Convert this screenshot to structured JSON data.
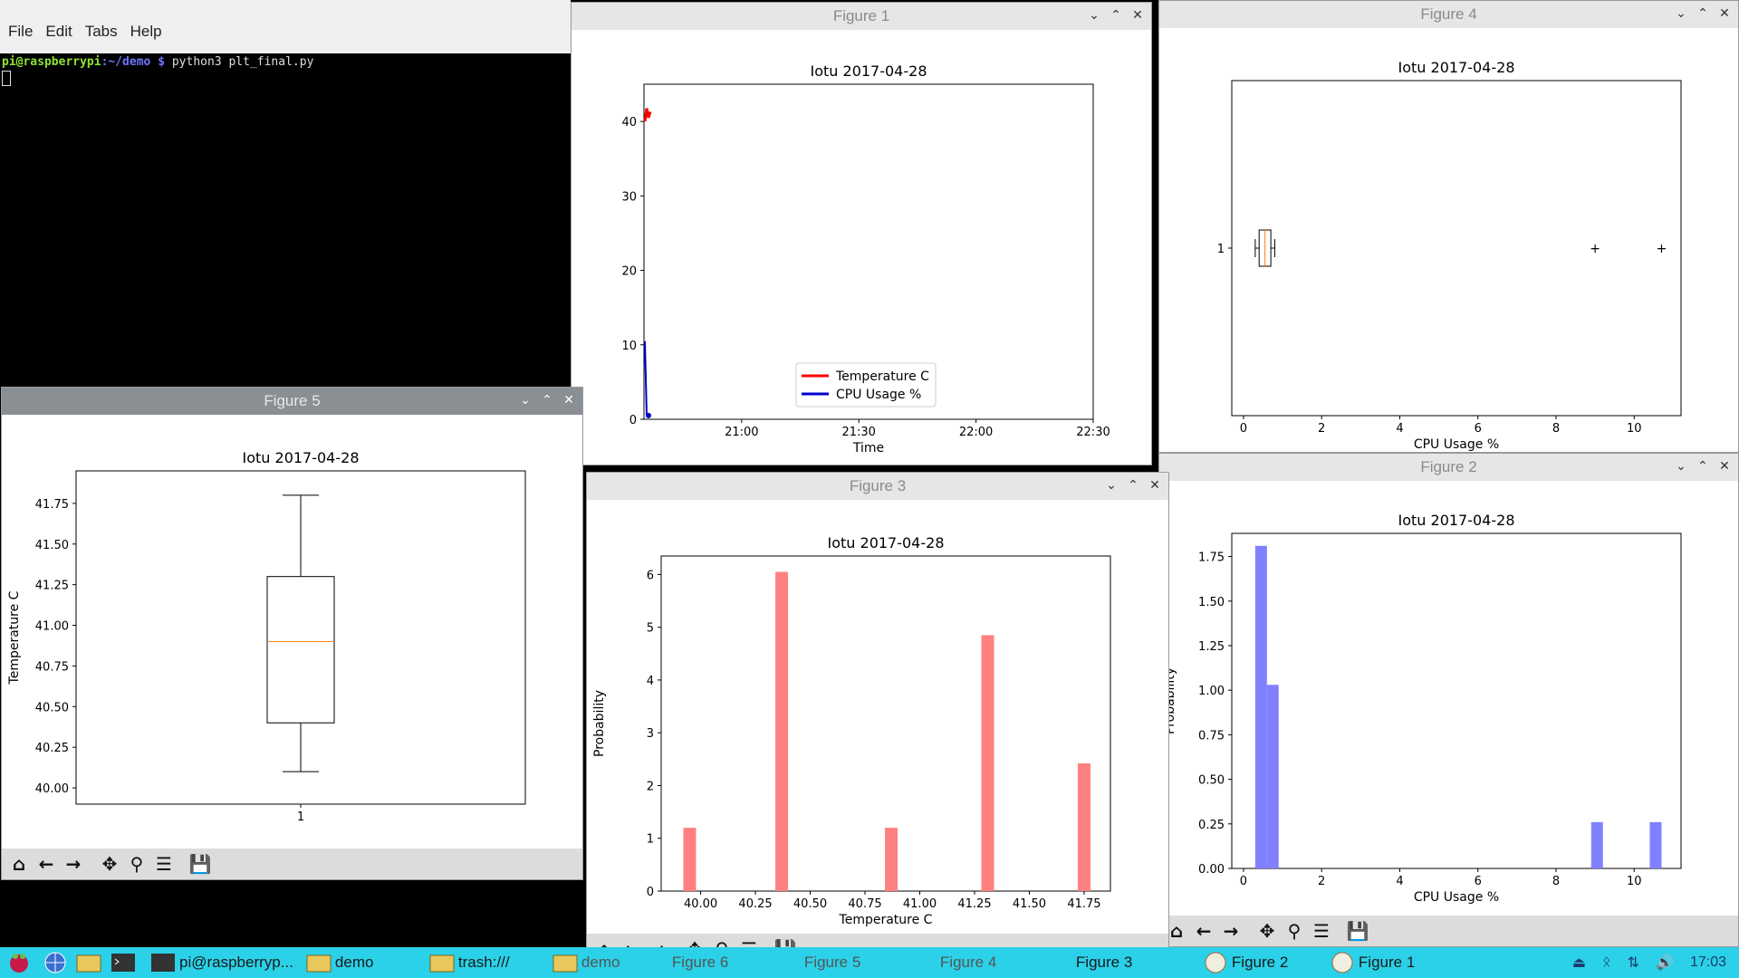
{
  "terminal": {
    "menu": [
      "File",
      "Edit",
      "Tabs",
      "Help"
    ],
    "prompt_user": "pi@raspberrypi",
    "prompt_path": ":~/demo $",
    "command": " python3 plt_final.py"
  },
  "figures": {
    "fig1": {
      "title": "Figure 1",
      "plot_title": "Iotu 2017-04-28",
      "xlabel": "Time",
      "yticks": [
        "0",
        "10",
        "20",
        "30",
        "40"
      ],
      "xticks": [
        "21:00",
        "21:30",
        "22:00",
        "22:30"
      ],
      "legend": [
        "Temperature C",
        "CPU Usage %"
      ]
    },
    "fig4": {
      "title": "Figure 4",
      "plot_title": "Iotu 2017-04-28",
      "xlabel": "CPU Usage %",
      "yticks": [
        "1"
      ],
      "xticks": [
        "0",
        "2",
        "4",
        "6",
        "8",
        "10"
      ]
    },
    "fig5": {
      "title": "Figure 5",
      "plot_title": "Iotu 2017-04-28",
      "ylabel": "Temperature C",
      "yticks": [
        "40.00",
        "40.25",
        "40.50",
        "40.75",
        "41.00",
        "41.25",
        "41.50",
        "41.75"
      ],
      "xticks": [
        "1"
      ]
    },
    "fig3": {
      "title": "Figure 3",
      "plot_title": "Iotu 2017-04-28",
      "xlabel": "Temperature C",
      "ylabel": "Probability",
      "yticks": [
        "0",
        "1",
        "2",
        "3",
        "4",
        "5",
        "6"
      ],
      "xticks": [
        "40.00",
        "40.25",
        "40.50",
        "40.75",
        "41.00",
        "41.25",
        "41.50",
        "41.75"
      ]
    },
    "fig2": {
      "title": "Figure 2",
      "plot_title": "Iotu 2017-04-28",
      "xlabel": "CPU Usage %",
      "ylabel": "Probability",
      "yticks": [
        "0.00",
        "0.25",
        "0.50",
        "0.75",
        "1.00",
        "1.25",
        "1.50",
        "1.75"
      ],
      "xticks": [
        "0",
        "2",
        "4",
        "6",
        "8",
        "10"
      ]
    }
  },
  "chart_data": [
    {
      "type": "line",
      "title": "Iotu 2017-04-28",
      "xlabel": "Time",
      "ylabel": "",
      "ylim": [
        0,
        45
      ],
      "xlim": [
        "20:35",
        "22:30"
      ],
      "series": [
        {
          "name": "Temperature C",
          "color": "#ff0000",
          "values": [
            40,
            41.75,
            40.5,
            41.3
          ]
        },
        {
          "name": "CPU Usage %",
          "color": "#0000cc",
          "values": [
            10.5,
            0.5,
            0.5
          ]
        }
      ]
    },
    {
      "type": "boxplot",
      "title": "Iotu 2017-04-28",
      "xlabel": "CPU Usage %",
      "xlim": [
        -0.3,
        11.2
      ],
      "box": {
        "whisker_low": 0.3,
        "q1": 0.4,
        "median": 0.55,
        "q3": 0.7,
        "whisker_high": 0.8,
        "outliers": [
          9.0,
          10.7
        ]
      }
    },
    {
      "type": "boxplot",
      "title": "Iotu 2017-04-28",
      "ylabel": "Temperature C",
      "ylim": [
        39.9,
        41.95
      ],
      "box": {
        "whisker_low": 40.1,
        "q1": 40.4,
        "median": 40.9,
        "q3": 41.3,
        "whisker_high": 41.8
      }
    },
    {
      "type": "bar",
      "title": "Iotu 2017-04-28",
      "xlabel": "Temperature C",
      "ylabel": "Probability",
      "xlim": [
        39.82,
        41.87
      ],
      "ylim": [
        0,
        6.35
      ],
      "bins": [
        {
          "x": 39.95,
          "value": 1.2
        },
        {
          "x": 40.37,
          "value": 6.05
        },
        {
          "x": 40.87,
          "value": 1.2
        },
        {
          "x": 41.31,
          "value": 4.85
        },
        {
          "x": 41.75,
          "value": 2.42
        }
      ]
    },
    {
      "type": "bar",
      "title": "Iotu 2017-04-28",
      "xlabel": "CPU Usage %",
      "ylabel": "Probability",
      "xlim": [
        -0.3,
        11.2
      ],
      "ylim": [
        0,
        1.88
      ],
      "bins": [
        {
          "x": 0.45,
          "value": 1.81
        },
        {
          "x": 0.75,
          "value": 1.03
        },
        {
          "x": 9.05,
          "value": 0.26
        },
        {
          "x": 10.55,
          "value": 0.26
        }
      ]
    }
  ],
  "taskbar": {
    "items": [
      "pi@raspberryp...",
      "demo",
      "trash:///",
      "demo",
      "Figure 6",
      "Figure 5",
      "Figure 4",
      "Figure 3",
      "Figure 2",
      "Figure 1"
    ],
    "clock": "17:03"
  }
}
